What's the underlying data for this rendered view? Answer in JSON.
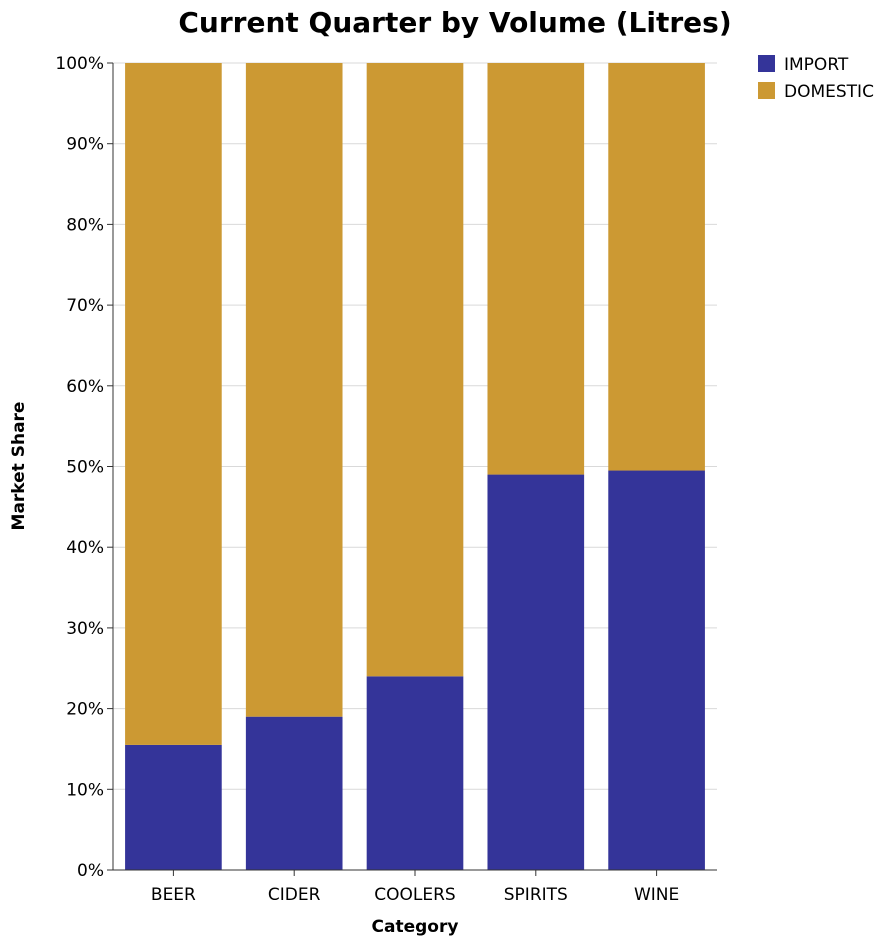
{
  "chart_data": {
    "type": "bar",
    "stacked": true,
    "title": "Current Quarter by Volume (Litres)",
    "xlabel": "Category",
    "ylabel": "Market Share",
    "categories": [
      "BEER",
      "CIDER",
      "COOLERS",
      "SPIRITS",
      "WINE"
    ],
    "series": [
      {
        "name": "IMPORT",
        "color": "#343499",
        "values": [
          15.5,
          19,
          24,
          49,
          49.5
        ]
      },
      {
        "name": "DOMESTIC",
        "color": "#CC9933",
        "values": [
          84.5,
          81,
          76,
          51,
          50.5
        ]
      }
    ],
    "ylim": [
      0,
      100
    ],
    "yticks": [
      "0%",
      "10%",
      "20%",
      "30%",
      "40%",
      "50%",
      "60%",
      "70%",
      "80%",
      "90%",
      "100%"
    ],
    "grid": true,
    "legend": "top-right"
  }
}
